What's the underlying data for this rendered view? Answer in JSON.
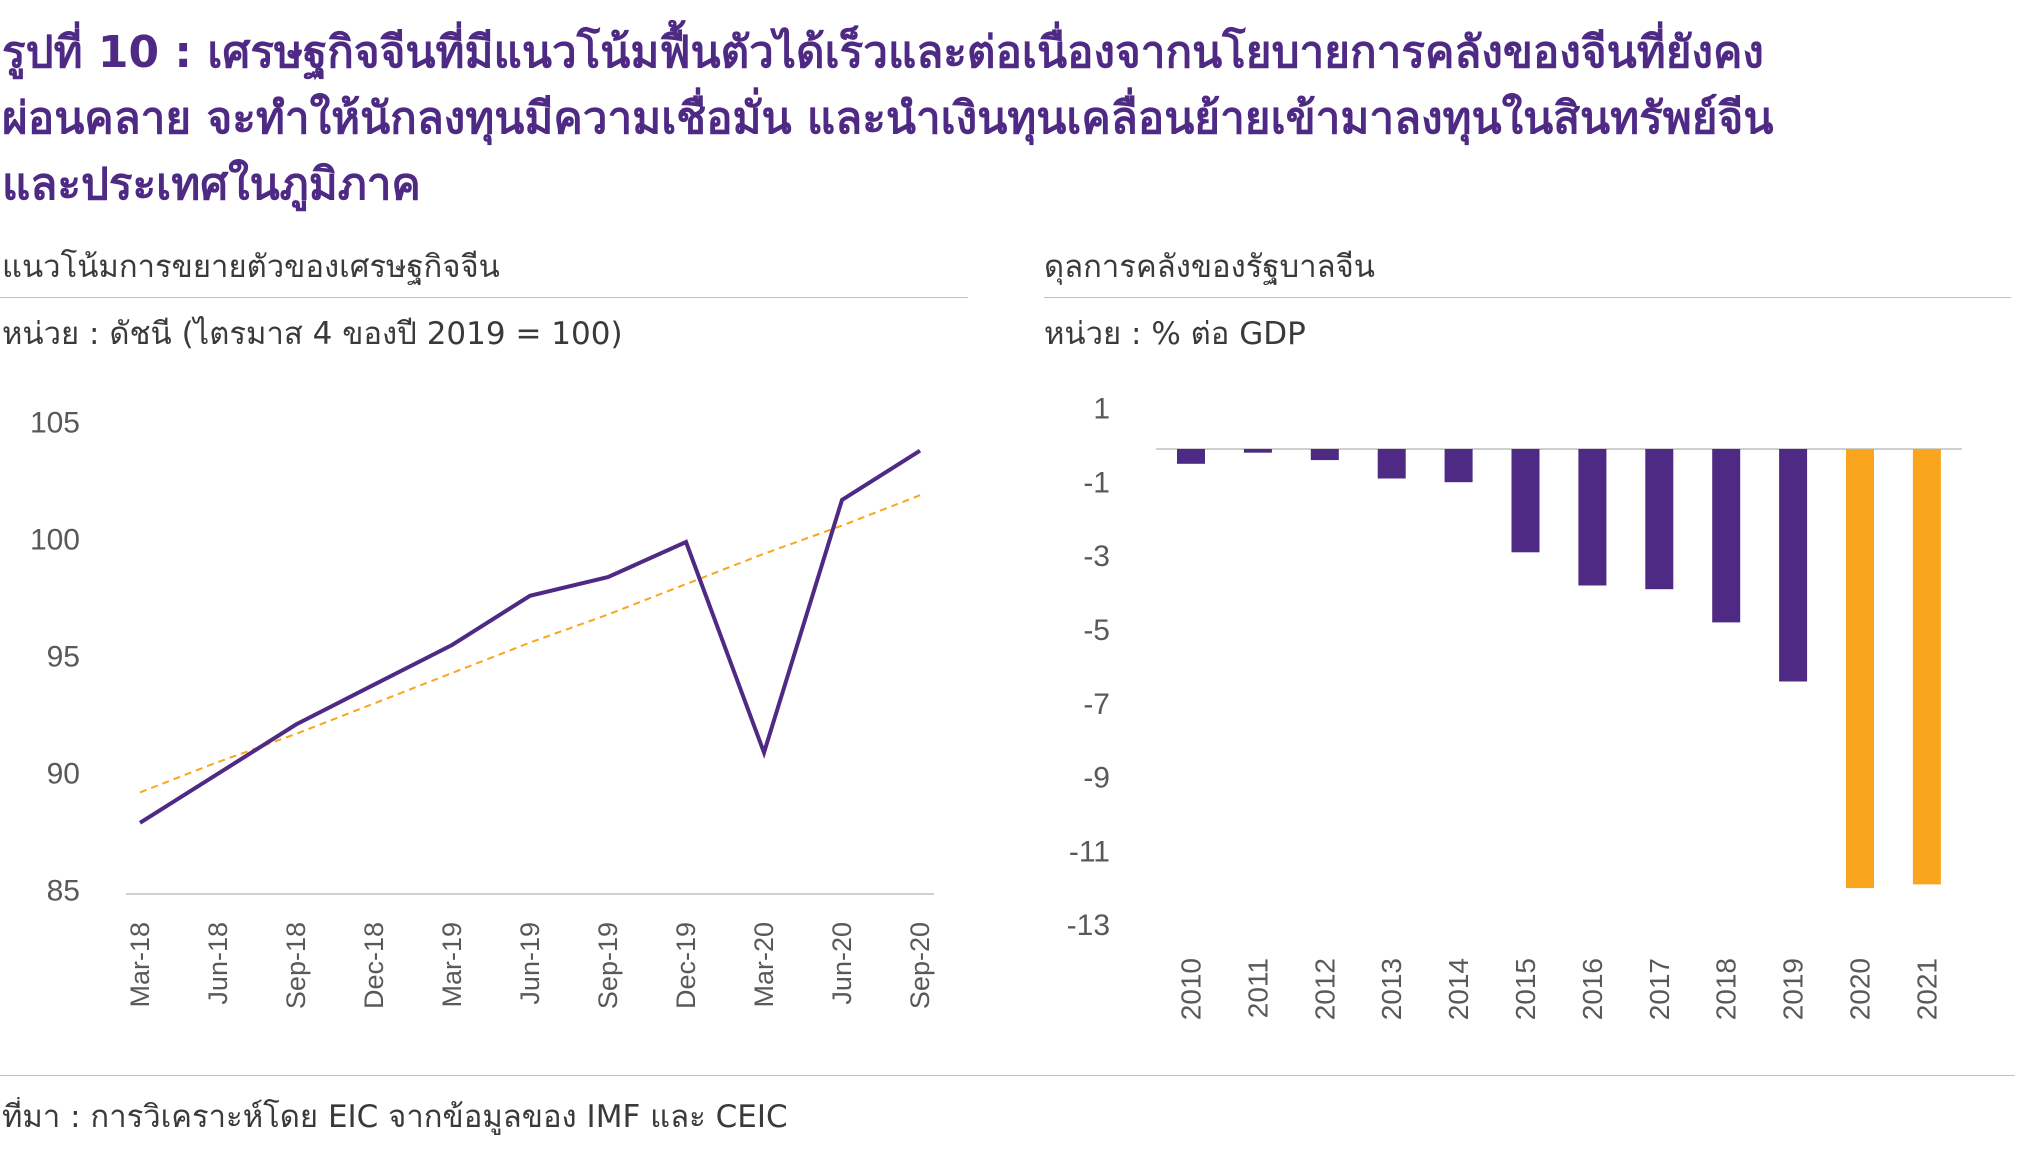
{
  "title_lines": [
    "รูปที่ 10 : เศรษฐกิจจีนที่มีแนวโน้มฟื้นตัวได้เร็วและต่อเนื่องจากนโยบายการคลังของจีนที่ยังคง",
    "ผ่อนคลาย จะทำให้นักลงทุนมีความเชื่อมั่น และนำเงินทุนเคลื่อนย้ายเข้ามาลงทุนในสินทรัพย์จีน",
    "และประเทศในภูมิภาค"
  ],
  "source": "ที่มา : การวิเคราะห์โดย EIC จากข้อมูลของ IMF และ CEIC",
  "colors": {
    "title": "#4E2A84",
    "series": "#4E2A84",
    "highlight": "#F9A61E",
    "axis": "#BFBFBF",
    "text": "#3A3A3A",
    "tick": "#595959"
  },
  "chart_data": [
    {
      "type": "line",
      "title": "แนวโน้มการขยายตัวของเศรษฐกิจจีน",
      "ylabel": "หน่วย : ดัชนี (ไตรมาส 4 ของปี 2019 = 100)",
      "categories": [
        "Mar-18",
        "Jun-18",
        "Sep-18",
        "Dec-18",
        "Mar-19",
        "Jun-19",
        "Sep-19",
        "Dec-19",
        "Mar-20",
        "Jun-20",
        "Sep-20"
      ],
      "series": [
        {
          "values": [
            88.0,
            90.1,
            92.2,
            93.9,
            95.6,
            97.7,
            98.5,
            100.0,
            91.0,
            101.8,
            103.9
          ],
          "color": "#4E2A84",
          "line_style": "solid"
        },
        {
          "values": [
            89.3,
            90.6,
            91.8,
            93.1,
            94.4,
            95.7,
            96.9,
            98.2,
            99.5,
            100.7,
            102.0
          ],
          "color": "#F9A61E",
          "line_style": "dashed"
        }
      ],
      "yticks": [
        85,
        90,
        95,
        100,
        105
      ],
      "ylim": [
        85,
        105
      ],
      "grid": false,
      "legend": "none"
    },
    {
      "type": "bar",
      "title": "ดุลการคลังของรัฐบาลจีน",
      "ylabel": "หน่วย : % ต่อ GDP",
      "categories": [
        "2010",
        "2011",
        "2012",
        "2013",
        "2014",
        "2015",
        "2016",
        "2017",
        "2018",
        "2019",
        "2020",
        "2021"
      ],
      "values": [
        -0.4,
        -0.1,
        -0.3,
        -0.8,
        -0.9,
        -2.8,
        -3.7,
        -3.8,
        -4.7,
        -6.3,
        -11.9,
        -11.8
      ],
      "bar_colors": [
        "#4E2A84",
        "#4E2A84",
        "#4E2A84",
        "#4E2A84",
        "#4E2A84",
        "#4E2A84",
        "#4E2A84",
        "#4E2A84",
        "#4E2A84",
        "#4E2A84",
        "#F9A61E",
        "#F9A61E"
      ],
      "yticks": [
        1,
        -1,
        -3,
        -5,
        -7,
        -9,
        -11,
        -13
      ],
      "ylim": [
        -13,
        1
      ],
      "grid": false,
      "legend": "none"
    }
  ]
}
